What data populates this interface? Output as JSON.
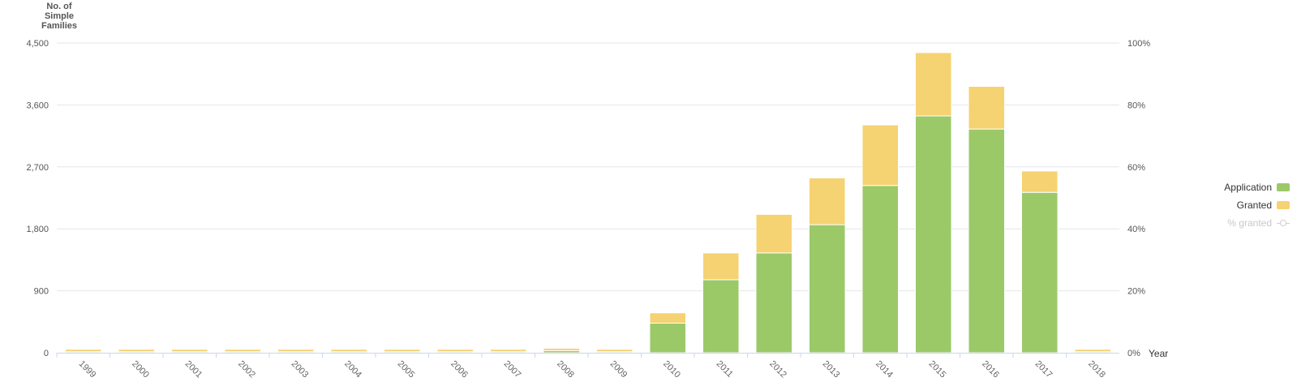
{
  "chart_data": {
    "type": "bar",
    "stacked": true,
    "y_axis_title": "No. of Simple Families",
    "x_axis_title": "Year",
    "categories": [
      "1999",
      "2000",
      "2001",
      "2002",
      "2003",
      "2004",
      "2005",
      "2006",
      "2007",
      "2008",
      "2009",
      "2010",
      "2011",
      "2012",
      "2013",
      "2014",
      "2015",
      "2016",
      "2017",
      "2018"
    ],
    "series": [
      {
        "name": "Application",
        "color": "#9bc968",
        "values": [
          15,
          15,
          15,
          15,
          15,
          15,
          15,
          15,
          15,
          30,
          15,
          430,
          1060,
          1450,
          1860,
          2430,
          3440,
          3250,
          2330,
          15
        ]
      },
      {
        "name": "Granted",
        "color": "#f5d272",
        "values": [
          35,
          35,
          35,
          35,
          35,
          35,
          35,
          35,
          35,
          35,
          35,
          150,
          390,
          560,
          680,
          880,
          920,
          620,
          310,
          35
        ]
      }
    ],
    "hidden_series": [
      {
        "name": "% granted",
        "type": "line"
      }
    ],
    "ylim_left": [
      0,
      4500
    ],
    "yticks_left": [
      "0",
      "900",
      "1,800",
      "2,700",
      "3,600",
      "4,500"
    ],
    "ylim_right": [
      0,
      100
    ],
    "yticks_right": [
      "0%",
      "20%",
      "40%",
      "60%",
      "80%",
      "100%"
    ],
    "grid": true,
    "legend": "right"
  },
  "legend": {
    "application_label": "Application",
    "granted_label": "Granted",
    "pct_label": "% granted"
  }
}
